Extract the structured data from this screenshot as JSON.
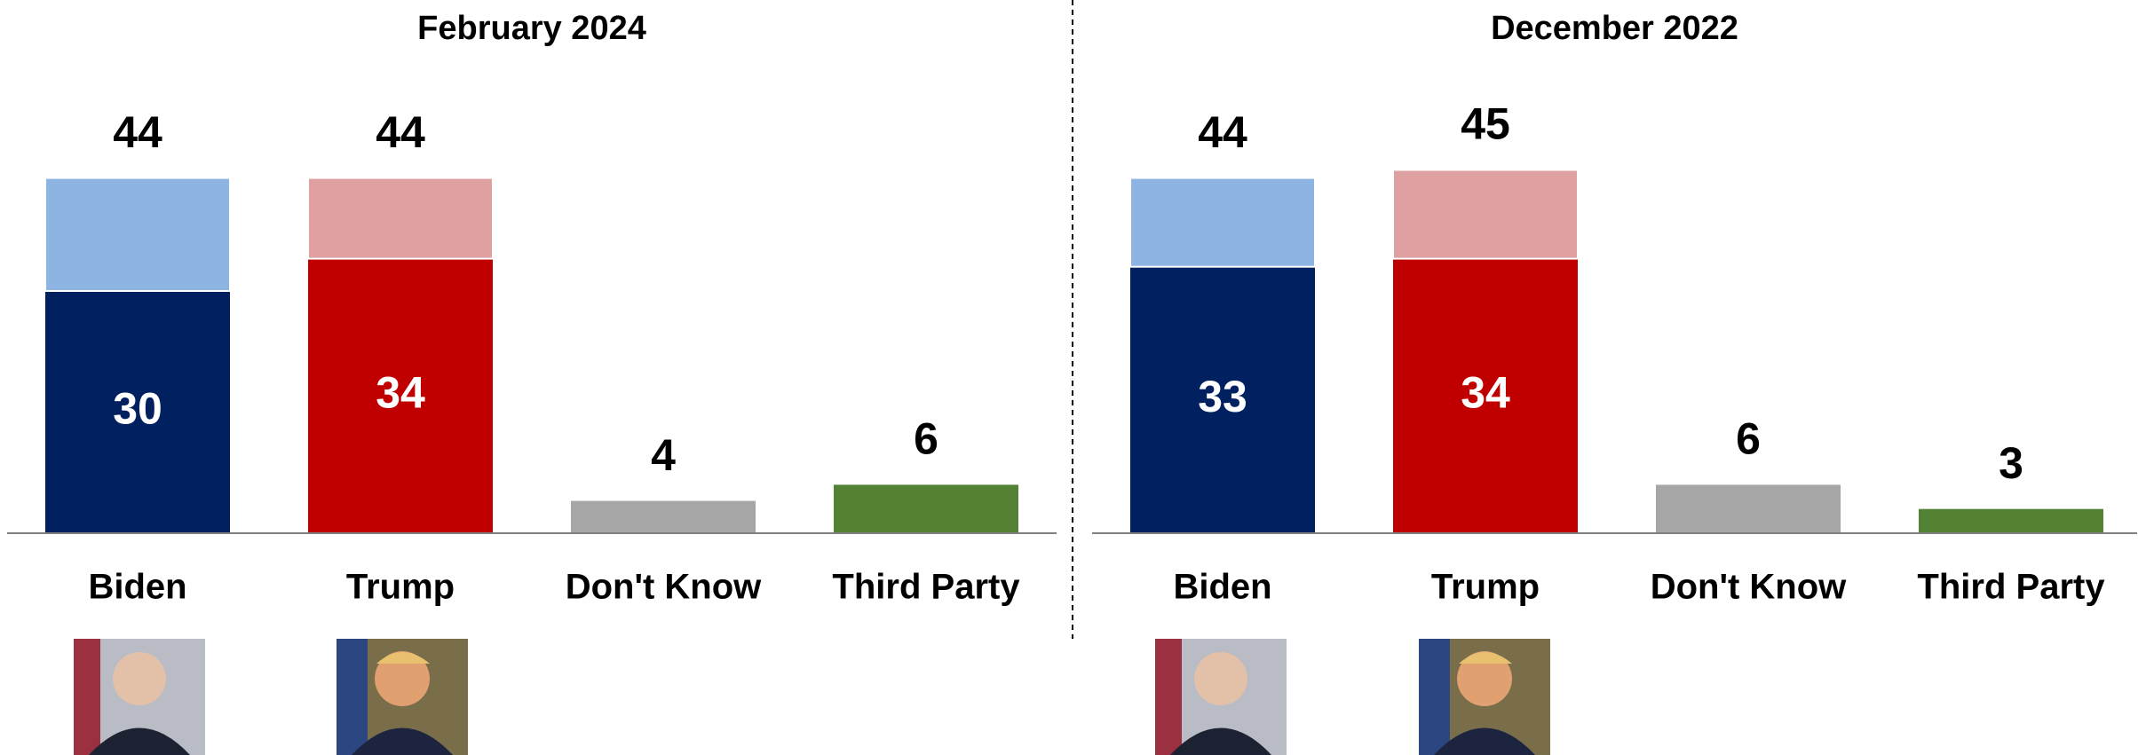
{
  "chart_data": [
    {
      "type": "stacked-bar",
      "title": "February 2024",
      "categories": [
        "Biden",
        "Trump",
        "Don't Know",
        "Third Party"
      ],
      "series": [
        {
          "values": [
            30,
            34,
            4,
            6
          ],
          "colors": [
            "#002060",
            "#c00000",
            "#a6a6a6",
            "#548235"
          ]
        },
        {
          "values": [
            14,
            10,
            null,
            null
          ],
          "colors": [
            "#8eb4e3",
            "#dea0a0",
            null,
            null
          ]
        }
      ],
      "totals": [
        44,
        44,
        4,
        6
      ]
    },
    {
      "type": "stacked-bar",
      "title": "December 2022",
      "categories": [
        "Biden",
        "Trump",
        "Don't Know",
        "Third Party"
      ],
      "series": [
        {
          "values": [
            33,
            34,
            6,
            3
          ],
          "colors": [
            "#002060",
            "#c00000",
            "#a6a6a6",
            "#548235"
          ]
        },
        {
          "values": [
            11,
            11,
            null,
            null
          ],
          "colors": [
            "#8eb4e3",
            "#dea0a0",
            null,
            null
          ]
        }
      ],
      "totals": [
        44,
        45,
        6,
        3
      ]
    }
  ]
}
